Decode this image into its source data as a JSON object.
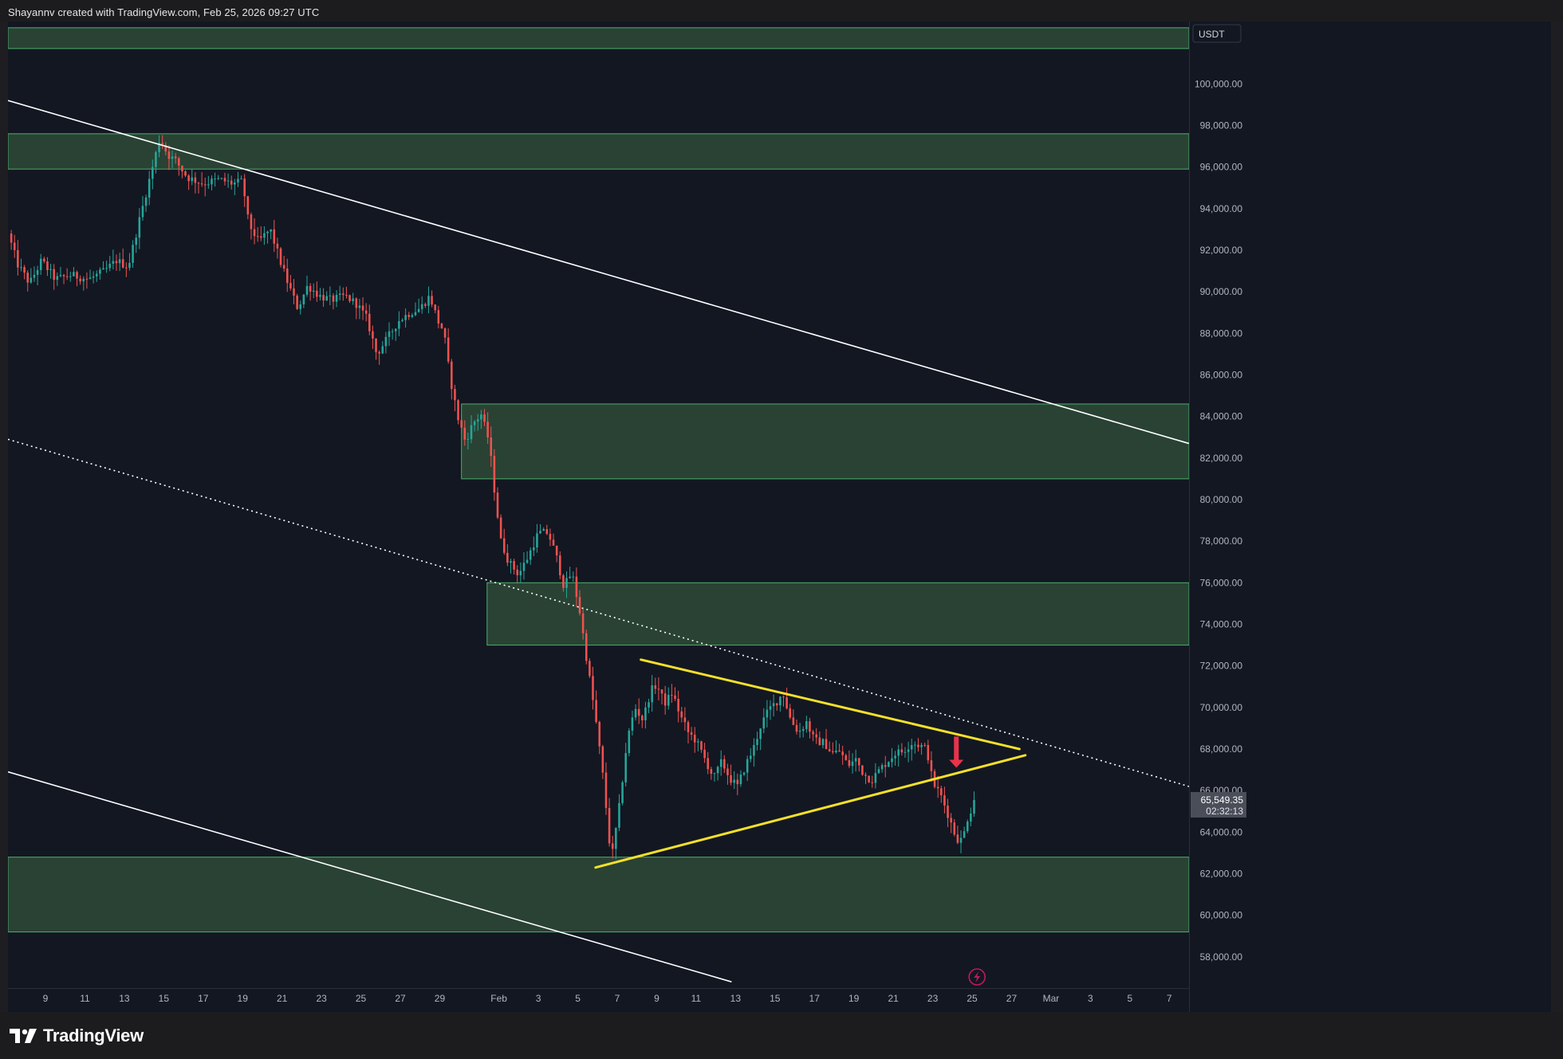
{
  "header": {
    "text": "Shayannv created with TradingView.com, Feb 25, 2026 09:27 UTC"
  },
  "footer": {
    "brand": "TradingView"
  },
  "price_axis": {
    "currency": "USDT",
    "current_price": "65,549.35",
    "countdown": "02:32:13"
  },
  "colors": {
    "background": "#131722",
    "zone_fill": "#2a4536",
    "zone_border": "#4caf6a",
    "up_candle": "#26a69a",
    "down_candle": "#ef5350",
    "trendline": "#ffffff",
    "triangle": "#f5e02a",
    "arrow": "#e8334a"
  },
  "icons": {
    "lightning": "lightning-icon",
    "logo": "tradingview-logo-icon",
    "arrow": "arrow-down-icon"
  },
  "chart_data": {
    "type": "candlestick",
    "symbol_currency": "USDT",
    "ylim": [
      56500,
      103000
    ],
    "y_ticks": [
      58000,
      60000,
      62000,
      64000,
      66000,
      68000,
      70000,
      72000,
      74000,
      76000,
      78000,
      80000,
      82000,
      84000,
      86000,
      88000,
      90000,
      92000,
      94000,
      96000,
      98000,
      100000
    ],
    "y_tick_labels": [
      "58,000.00",
      "60,000.00",
      "62,000.00",
      "64,000.00",
      "66,000.00",
      "68,000.00",
      "70,000.00",
      "72,000.00",
      "74,000.00",
      "76,000.00",
      "78,000.00",
      "80,000.00",
      "82,000.00",
      "84,000.00",
      "86,000.00",
      "88,000.00",
      "90,000.00",
      "92,000.00",
      "94,000.00",
      "96,000.00",
      "98,000.00",
      "100,000.00"
    ],
    "x_range_days": [
      7.1,
      67.0
    ],
    "x_ticks": [
      {
        "day": 9,
        "label": "9"
      },
      {
        "day": 11,
        "label": "11"
      },
      {
        "day": 13,
        "label": "13"
      },
      {
        "day": 15,
        "label": "15"
      },
      {
        "day": 17,
        "label": "17"
      },
      {
        "day": 19,
        "label": "19"
      },
      {
        "day": 21,
        "label": "21"
      },
      {
        "day": 23,
        "label": "23"
      },
      {
        "day": 25,
        "label": "25"
      },
      {
        "day": 27,
        "label": "27"
      },
      {
        "day": 29,
        "label": "29"
      },
      {
        "day": 32,
        "label": "Feb"
      },
      {
        "day": 34,
        "label": "3"
      },
      {
        "day": 36,
        "label": "5"
      },
      {
        "day": 38,
        "label": "7"
      },
      {
        "day": 40,
        "label": "9"
      },
      {
        "day": 42,
        "label": "11"
      },
      {
        "day": 44,
        "label": "13"
      },
      {
        "day": 46,
        "label": "15"
      },
      {
        "day": 48,
        "label": "17"
      },
      {
        "day": 50,
        "label": "19"
      },
      {
        "day": 52,
        "label": "21"
      },
      {
        "day": 54,
        "label": "23"
      },
      {
        "day": 56,
        "label": "25"
      },
      {
        "day": 58,
        "label": "27"
      },
      {
        "day": 60,
        "label": "Mar"
      },
      {
        "day": 62,
        "label": "3"
      },
      {
        "day": 64,
        "label": "5"
      },
      {
        "day": 66,
        "label": "7"
      }
    ],
    "price_path": [
      [
        7.1,
        92800
      ],
      [
        7.6,
        91300
      ],
      [
        8.2,
        90400
      ],
      [
        8.8,
        91500
      ],
      [
        9.5,
        90600
      ],
      [
        10.3,
        90800
      ],
      [
        11.2,
        90600
      ],
      [
        12.0,
        91000
      ],
      [
        12.6,
        91500
      ],
      [
        13.2,
        91200
      ],
      [
        13.7,
        93200
      ],
      [
        14.3,
        95500
      ],
      [
        14.8,
        97400
      ],
      [
        15.2,
        96600
      ],
      [
        15.6,
        96300
      ],
      [
        16.2,
        95500
      ],
      [
        17.0,
        95200
      ],
      [
        17.8,
        95400
      ],
      [
        18.5,
        95200
      ],
      [
        19.0,
        95300
      ],
      [
        19.3,
        93300
      ],
      [
        19.8,
        92400
      ],
      [
        20.4,
        93000
      ],
      [
        20.9,
        91500
      ],
      [
        21.3,
        90400
      ],
      [
        21.8,
        89200
      ],
      [
        22.3,
        90300
      ],
      [
        22.9,
        89800
      ],
      [
        23.5,
        89600
      ],
      [
        24.2,
        89800
      ],
      [
        24.8,
        89400
      ],
      [
        25.3,
        88700
      ],
      [
        25.8,
        87000
      ],
      [
        26.3,
        87700
      ],
      [
        26.9,
        88600
      ],
      [
        27.5,
        89000
      ],
      [
        28.0,
        89200
      ],
      [
        28.5,
        89800
      ],
      [
        28.9,
        88600
      ],
      [
        29.2,
        88100
      ],
      [
        29.5,
        86000
      ],
      [
        29.9,
        84000
      ],
      [
        30.3,
        82800
      ],
      [
        30.7,
        83700
      ],
      [
        31.1,
        84100
      ],
      [
        31.5,
        82800
      ],
      [
        31.8,
        80200
      ],
      [
        32.1,
        78000
      ],
      [
        32.5,
        77000
      ],
      [
        33.0,
        76400
      ],
      [
        33.5,
        77300
      ],
      [
        34.0,
        78400
      ],
      [
        34.5,
        78400
      ],
      [
        34.9,
        77300
      ],
      [
        35.3,
        75800
      ],
      [
        35.7,
        76500
      ],
      [
        36.1,
        74600
      ],
      [
        36.5,
        72000
      ],
      [
        36.9,
        69500
      ],
      [
        37.3,
        66500
      ],
      [
        37.7,
        62600
      ],
      [
        38.1,
        65200
      ],
      [
        38.5,
        68400
      ],
      [
        38.9,
        70000
      ],
      [
        39.3,
        69400
      ],
      [
        39.7,
        70800
      ],
      [
        40.0,
        71100
      ],
      [
        40.4,
        70200
      ],
      [
        40.8,
        70700
      ],
      [
        41.2,
        69600
      ],
      [
        41.6,
        68800
      ],
      [
        42.0,
        68400
      ],
      [
        42.5,
        67400
      ],
      [
        42.9,
        66600
      ],
      [
        43.3,
        67400
      ],
      [
        43.7,
        66600
      ],
      [
        44.1,
        66200
      ],
      [
        44.5,
        67200
      ],
      [
        44.9,
        68000
      ],
      [
        45.3,
        69200
      ],
      [
        45.7,
        69900
      ],
      [
        46.1,
        70300
      ],
      [
        46.4,
        70700
      ],
      [
        46.8,
        69400
      ],
      [
        47.2,
        68800
      ],
      [
        47.6,
        69300
      ],
      [
        48.0,
        68400
      ],
      [
        48.5,
        68300
      ],
      [
        48.9,
        67800
      ],
      [
        49.3,
        67900
      ],
      [
        49.7,
        67200
      ],
      [
        50.1,
        67500
      ],
      [
        50.5,
        66800
      ],
      [
        50.9,
        66500
      ],
      [
        51.3,
        67000
      ],
      [
        51.7,
        67400
      ],
      [
        52.1,
        67800
      ],
      [
        52.5,
        67900
      ],
      [
        52.9,
        68300
      ],
      [
        53.3,
        68200
      ],
      [
        53.7,
        68000
      ],
      [
        54.0,
        66400
      ],
      [
        54.4,
        65800
      ],
      [
        54.8,
        64800
      ],
      [
        55.2,
        63700
      ],
      [
        55.5,
        63600
      ],
      [
        55.8,
        64800
      ],
      [
        56.2,
        65549
      ]
    ],
    "zones": [
      {
        "from": 102700,
        "to": 101700,
        "x_start": 7.1
      },
      {
        "from": 97600,
        "to": 95900,
        "x_start": 7.1
      },
      {
        "from": 84600,
        "to": 81000,
        "x_start": 30.1
      },
      {
        "from": 76000,
        "to": 73000,
        "x_start": 31.4
      },
      {
        "from": 62800,
        "to": 59200,
        "x_start": 7.1
      }
    ],
    "trendlines": [
      {
        "style": "solid",
        "points": [
          [
            7.1,
            99200
          ],
          [
            67.0,
            82700
          ]
        ]
      },
      {
        "style": "dotted",
        "points": [
          [
            7.1,
            82900
          ],
          [
            67.0,
            66200
          ]
        ]
      },
      {
        "style": "solid",
        "points": [
          [
            7.1,
            66900
          ],
          [
            43.8,
            56800
          ]
        ]
      }
    ],
    "triangle": {
      "upper": [
        [
          39.2,
          72300
        ],
        [
          58.4,
          68000
        ]
      ],
      "lower": [
        [
          36.9,
          62300
        ],
        [
          58.7,
          67700
        ]
      ]
    },
    "arrow_marker": {
      "x": 55.2,
      "from": 68600,
      "to": 67100
    }
  }
}
